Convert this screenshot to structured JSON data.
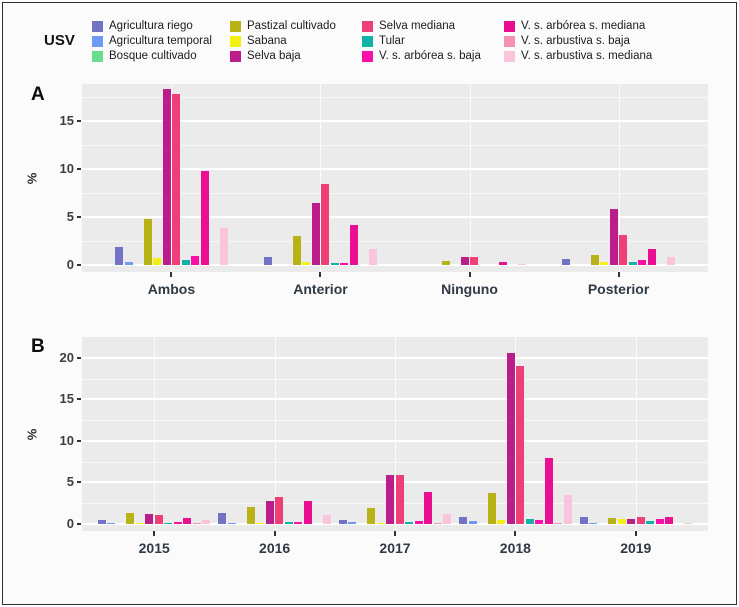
{
  "chart_data": {
    "type": "bar",
    "legend_title": "USV",
    "legend_position": "top",
    "grid": true,
    "usv_categories": [
      {
        "name": "Agricultura riego",
        "color": "#7273c4"
      },
      {
        "name": "Agricultura temporal",
        "color": "#6d9bf2"
      },
      {
        "name": "Bosque cultivado",
        "color": "#69dd8d"
      },
      {
        "name": "Pastizal cultivado",
        "color": "#b9b216"
      },
      {
        "name": "Sabana",
        "color": "#f4f112"
      },
      {
        "name": "Selva baja",
        "color": "#bb1d8b"
      },
      {
        "name": "Selva mediana",
        "color": "#ee4077"
      },
      {
        "name": "Tular",
        "color": "#10b3a6"
      },
      {
        "name": "V. s. arbórea s. baja",
        "color": "#fa10a9"
      },
      {
        "name": "V. s. arbórea s. mediana",
        "color": "#ea0f92"
      },
      {
        "name": "V. s. arbustiva s. baja",
        "color": "#f591b4"
      },
      {
        "name": "V. s. arbustiva s. mediana",
        "color": "#fac4dd"
      }
    ],
    "panels": [
      {
        "label": "A",
        "ylabel": "%",
        "yticks": [
          0,
          5,
          10,
          15
        ],
        "ylim": [
          0,
          18.85
        ],
        "categories": [
          "Ambos",
          "Anterior",
          "Ninguno",
          "Posterior"
        ],
        "series": [
          {
            "name": "Agricultura riego",
            "values": [
              1.9,
              0.8,
              0,
              0.6
            ]
          },
          {
            "name": "Agricultura temporal",
            "values": [
              0.3,
              0,
              0,
              0
            ]
          },
          {
            "name": "Bosque cultivado",
            "values": [
              0,
              0,
              0,
              0
            ]
          },
          {
            "name": "Pastizal cultivado",
            "values": [
              4.8,
              3.0,
              0.4,
              1.0
            ]
          },
          {
            "name": "Sabana",
            "values": [
              0.7,
              0.35,
              0,
              0.3
            ]
          },
          {
            "name": "Selva baja",
            "values": [
              18.3,
              6.5,
              0.8,
              5.8
            ]
          },
          {
            "name": "Selva mediana",
            "values": [
              17.8,
              8.4,
              0.8,
              3.1
            ]
          },
          {
            "name": "Tular",
            "values": [
              0.55,
              0.25,
              0,
              0.3
            ]
          },
          {
            "name": "V. s. arbórea s. baja",
            "values": [
              0.95,
              0.25,
              0,
              0.5
            ]
          },
          {
            "name": "V. s. arbórea s. mediana",
            "values": [
              9.8,
              4.2,
              0.35,
              1.7
            ]
          },
          {
            "name": "V. s. arbustiva s. baja",
            "values": [
              0,
              0,
              0,
              0
            ]
          },
          {
            "name": "V. s. arbustiva s. mediana",
            "values": [
              3.9,
              1.7,
              0.1,
              0.8
            ]
          }
        ]
      },
      {
        "label": "B",
        "ylabel": "%",
        "yticks": [
          0,
          5,
          10,
          15,
          20
        ],
        "ylim": [
          0,
          22.5
        ],
        "categories": [
          "2015",
          "2016",
          "2017",
          "2018",
          "2019"
        ],
        "series": [
          {
            "name": "Agricultura riego",
            "values": [
              0.5,
              1.3,
              0.5,
              0.9,
              0.8
            ]
          },
          {
            "name": "Agricultura temporal",
            "values": [
              0.15,
              0.15,
              0.2,
              0.4,
              0.15
            ]
          },
          {
            "name": "Bosque cultivado",
            "values": [
              0,
              0,
              0,
              0,
              0
            ]
          },
          {
            "name": "Pastizal cultivado",
            "values": [
              1.3,
              2.0,
              1.9,
              3.7,
              0.7
            ]
          },
          {
            "name": "Sabana",
            "values": [
              0.15,
              0.15,
              0.15,
              0.5,
              0.6
            ]
          },
          {
            "name": "Selva baja",
            "values": [
              1.2,
              2.8,
              5.9,
              20.6,
              0.6
            ]
          },
          {
            "name": "Selva mediana",
            "values": [
              1.1,
              3.2,
              5.9,
              19.0,
              0.9
            ]
          },
          {
            "name": "Tular",
            "values": [
              0.15,
              0.3,
              0.2,
              0.55,
              0.35
            ]
          },
          {
            "name": "V. s. arbórea s. baja",
            "values": [
              0.2,
              0.2,
              0.4,
              0.5,
              0.6
            ]
          },
          {
            "name": "V. s. arbórea s. mediana",
            "values": [
              0.7,
              2.8,
              3.8,
              8.0,
              0.85
            ]
          },
          {
            "name": "V. s. arbustiva s. baja",
            "values": [
              0.1,
              0,
              0.1,
              0.15,
              0
            ]
          },
          {
            "name": "V. s. arbustiva s. mediana",
            "values": [
              0.5,
              1.1,
              1.2,
              3.5,
              0.15
            ]
          }
        ]
      }
    ]
  }
}
